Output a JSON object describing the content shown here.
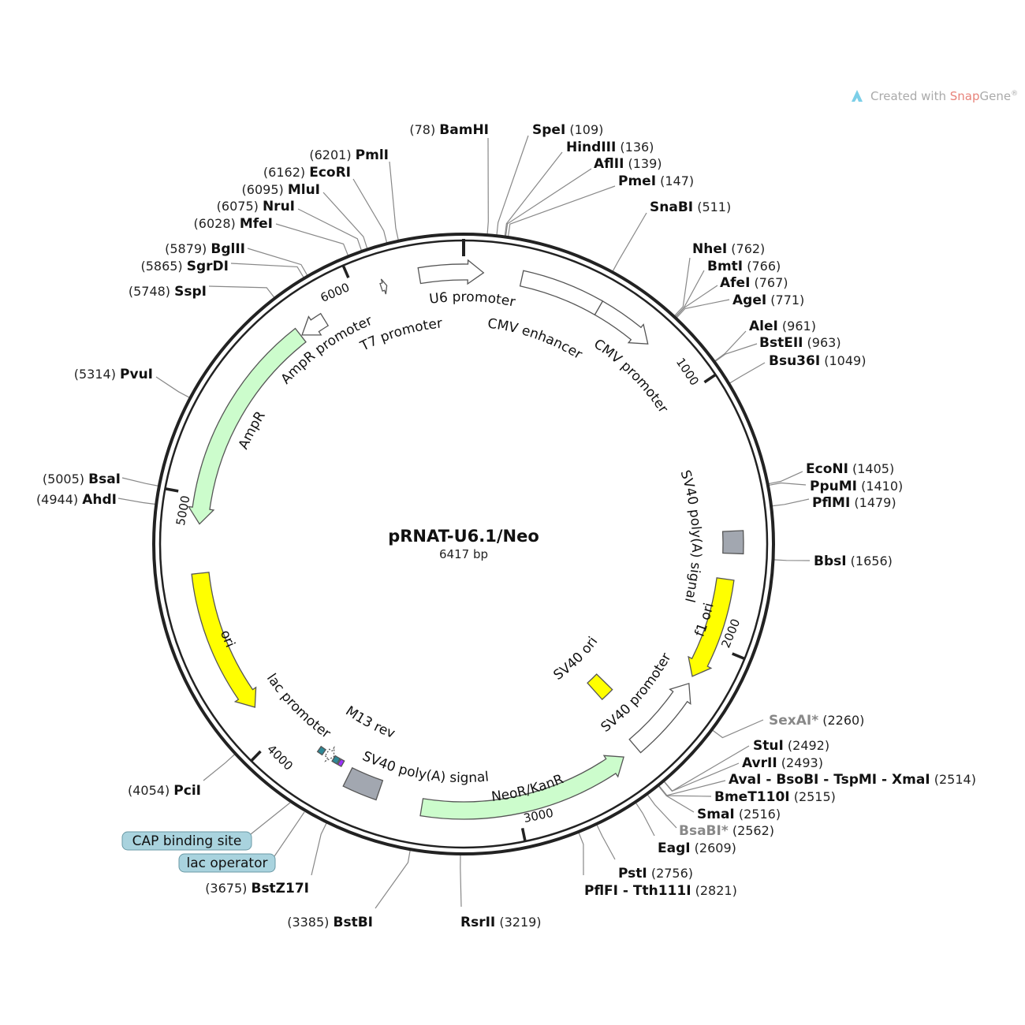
{
  "plasmid": {
    "name": "pRNAT-U6.1/Neo",
    "length_label": "6417 bp",
    "length": 6417
  },
  "watermark": {
    "prefix": "Created with ",
    "brand_a": "Snap",
    "brand_b": "Gene",
    "mark": "®",
    "brand_color": "#e8837a",
    "icon": "snapgene-logo-icon"
  },
  "ticks": [
    "1000",
    "2000",
    "3000",
    "4000",
    "5000",
    "6000"
  ],
  "colors": {
    "ring": "#222222",
    "green": "#ccfccc",
    "yellow": "#ffff00",
    "gray": "#a2a7b0",
    "white": "#ffffff",
    "teal": "#2e8896",
    "purple": "#9b30ff",
    "callout_bg": "#a9d3de"
  },
  "features": [
    {
      "name": "U6 promoter",
      "start": 6250,
      "end": 75,
      "dir": 1,
      "color": "white"
    },
    {
      "name": "CMV enhancer",
      "start": 220,
      "end": 531,
      "dir": 0,
      "color": "white"
    },
    {
      "name": "CMV promoter",
      "start": 531,
      "end": 760,
      "dir": 1,
      "color": "white"
    },
    {
      "name": "SV40 poly(A) signal",
      "start": 1555,
      "end": 1640,
      "dir": 0,
      "color": "gray"
    },
    {
      "name": "f1 ori",
      "start": 1740,
      "end": 2140,
      "dir": 1,
      "color": "yellow"
    },
    {
      "name": "SV40 promoter",
      "start": 2170,
      "end": 2490,
      "dir": -1,
      "color": "white"
    },
    {
      "name": "SV40 ori",
      "start": 2395,
      "end": 2465,
      "dir": 0,
      "color": "yellow"
    },
    {
      "name": "NeoR/KanR",
      "start": 2550,
      "end": 3370,
      "dir": -1,
      "color": "green"
    },
    {
      "name": "SV40 poly(A) signal",
      "start": 3545,
      "end": 3680,
      "dir": 0,
      "color": "gray"
    },
    {
      "name": "M13 rev",
      "start": 3722,
      "end": 3738,
      "dir": 0,
      "color": "purple"
    },
    {
      "name": "lac operator",
      "start": 3742,
      "end": 3765,
      "dir": 0,
      "color": "teal"
    },
    {
      "name": "lac promoter",
      "start": 3768,
      "end": 3800,
      "dir": -1,
      "color": "white"
    },
    {
      "name": "CAP binding site",
      "start": 3812,
      "end": 3835,
      "dir": 0,
      "color": "teal"
    },
    {
      "name": "ori",
      "start": 4135,
      "end": 4700,
      "dir": -1,
      "color": "yellow"
    },
    {
      "name": "AmpR",
      "start": 4890,
      "end": 5740,
      "dir": -1,
      "color": "green"
    },
    {
      "name": "AmpR promoter",
      "start": 5745,
      "end": 5850,
      "dir": -1,
      "color": "white"
    },
    {
      "name": "T7 promoter",
      "start": 6100,
      "end": 6122,
      "dir": 1,
      "color": "white"
    }
  ],
  "callouts": [
    {
      "label": "CAP binding site"
    },
    {
      "label": "lac operator"
    }
  ],
  "sites": [
    {
      "name": "BamHI",
      "pos": "78"
    },
    {
      "name": "SpeI",
      "pos": "109"
    },
    {
      "name": "HindIII",
      "pos": "136"
    },
    {
      "name": "AflII",
      "pos": "139"
    },
    {
      "name": "PmeI",
      "pos": "147"
    },
    {
      "name": "SnaBI",
      "pos": "511"
    },
    {
      "name": "NheI",
      "pos": "762"
    },
    {
      "name": "BmtI",
      "pos": "766"
    },
    {
      "name": "AfeI",
      "pos": "767"
    },
    {
      "name": "AgeI",
      "pos": "771"
    },
    {
      "name": "AleI",
      "pos": "961"
    },
    {
      "name": "BstEII",
      "pos": "963"
    },
    {
      "name": "Bsu36I",
      "pos": "1049"
    },
    {
      "name": "EcoNI",
      "pos": "1405"
    },
    {
      "name": "PpuMI",
      "pos": "1410"
    },
    {
      "name": "PflMI",
      "pos": "1479"
    },
    {
      "name": "BbsI",
      "pos": "1656"
    },
    {
      "name": "SexAI*",
      "pos": "2260",
      "muted": true
    },
    {
      "name": "StuI",
      "pos": "2492"
    },
    {
      "name": "AvrII",
      "pos": "2493"
    },
    {
      "name": "AvaI - BsoBI - TspMI - XmaI",
      "pos": "2514"
    },
    {
      "name": "BmeT110I",
      "pos": "2515"
    },
    {
      "name": "SmaI",
      "pos": "2516"
    },
    {
      "name": "BsaBI*",
      "pos": "2562",
      "muted": true
    },
    {
      "name": "EagI",
      "pos": "2609"
    },
    {
      "name": "PstI",
      "pos": "2756"
    },
    {
      "name": "PflFI - Tth111I",
      "pos": "2821"
    },
    {
      "name": "RsrII",
      "pos": "3219"
    },
    {
      "name": "BstBI",
      "pos": "3385"
    },
    {
      "name": "BstZ17I",
      "pos": "3675"
    },
    {
      "name": "PciI",
      "pos": "4054"
    },
    {
      "name": "AhdI",
      "pos": "4944"
    },
    {
      "name": "BsaI",
      "pos": "5005"
    },
    {
      "name": "PvuI",
      "pos": "5314"
    },
    {
      "name": "SspI",
      "pos": "5748"
    },
    {
      "name": "SgrDI",
      "pos": "5865"
    },
    {
      "name": "BglII",
      "pos": "5879"
    },
    {
      "name": "MfeI",
      "pos": "6028"
    },
    {
      "name": "NruI",
      "pos": "6075"
    },
    {
      "name": "MluI",
      "pos": "6095"
    },
    {
      "name": "EcoRI",
      "pos": "6162"
    },
    {
      "name": "PmlI",
      "pos": "6201"
    }
  ]
}
